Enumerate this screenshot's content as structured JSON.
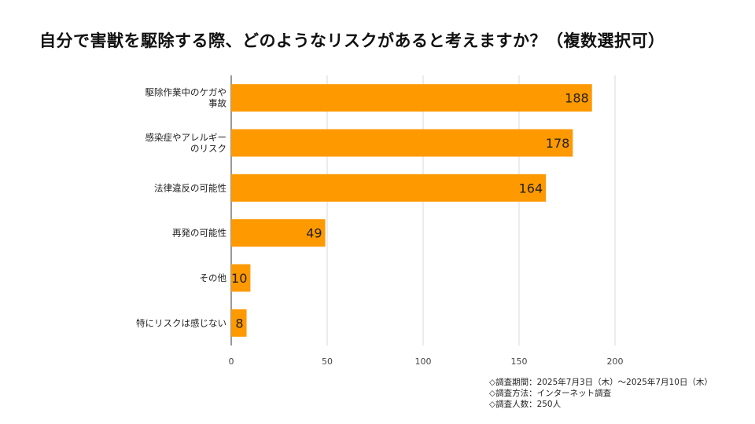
{
  "title": "自分で害獣を駆除する際、どのようなリスクがあると考えますか？（複数選択可）",
  "chart_data": {
    "type": "bar",
    "orientation": "horizontal",
    "title": "自分で害獣を駆除する際、どのようなリスクがあると考えますか？（複数選択可）",
    "categories": [
      [
        "駆除作業中のケガや",
        "事故"
      ],
      [
        "感染症やアレルギー",
        "のリスク"
      ],
      [
        "法律違反の可能性"
      ],
      [
        "再発の可能性"
      ],
      [
        "その他"
      ],
      [
        "特にリスクは感じない"
      ]
    ],
    "values": [
      188,
      178,
      164,
      49,
      10,
      8
    ],
    "xlim": [
      0,
      200
    ],
    "xticks": [
      0,
      50,
      100,
      150,
      200
    ],
    "xlabel": "",
    "ylabel": "",
    "grid": true,
    "bar_color": "#ff9900"
  },
  "notes": [
    "◇調査期間：2025年7月3日（木）〜2025年7月10日（木）",
    "◇調査方法：インターネット調査",
    "◇調査人数：250人"
  ]
}
